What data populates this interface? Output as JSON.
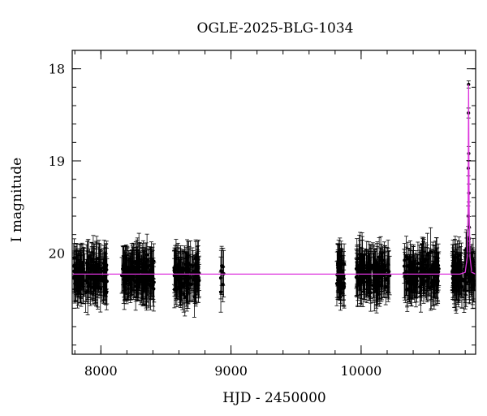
{
  "chart_data": {
    "type": "scatter",
    "title": "OGLE-2025-BLG-1034",
    "xlabel": "HJD - 2450000",
    "ylabel": "I magnitude",
    "xlim": [
      7780,
      10880
    ],
    "ylim": [
      21.1,
      17.8
    ],
    "y_inverted": true,
    "x_ticks": [
      8000,
      9000,
      10000
    ],
    "y_ticks": [
      18,
      19,
      20
    ],
    "grid": false,
    "colors": {
      "points": "#000000",
      "model": "#dd33dd"
    },
    "baseline_mag": 20.23,
    "model_curve": [
      {
        "x": 7780,
        "y": 20.23
      },
      {
        "x": 10760,
        "y": 20.23
      },
      {
        "x": 10800,
        "y": 20.21
      },
      {
        "x": 10815,
        "y": 20.05
      },
      {
        "x": 10822,
        "y": 19.5
      },
      {
        "x": 10826,
        "y": 18.17
      },
      {
        "x": 10830,
        "y": 19.5
      },
      {
        "x": 10837,
        "y": 20.05
      },
      {
        "x": 10850,
        "y": 20.21
      },
      {
        "x": 10880,
        "y": 20.23
      }
    ],
    "seasons": [
      {
        "x_start": 7790,
        "x_end": 8050,
        "n": 150
      },
      {
        "x_start": 8160,
        "x_end": 8410,
        "n": 150
      },
      {
        "x_start": 8560,
        "x_end": 8760,
        "n": 110
      },
      {
        "x_start": 8920,
        "x_end": 8945,
        "n": 8
      },
      {
        "x_start": 9810,
        "x_end": 9870,
        "n": 45
      },
      {
        "x_start": 9960,
        "x_end": 10220,
        "n": 140
      },
      {
        "x_start": 10330,
        "x_end": 10600,
        "n": 140
      },
      {
        "x_start": 10700,
        "x_end": 10880,
        "n": 110
      }
    ],
    "scatter_sigma": 0.22,
    "error_bar_size": 0.22,
    "peak_points": [
      {
        "x": 10826,
        "y": 18.17
      },
      {
        "x": 10825,
        "y": 18.48
      },
      {
        "x": 10827,
        "y": 18.92
      },
      {
        "x": 10824,
        "y": 19.08
      },
      {
        "x": 10828,
        "y": 19.35
      },
      {
        "x": 10823,
        "y": 19.6
      },
      {
        "x": 10829,
        "y": 19.72
      },
      {
        "x": 10830,
        "y": 19.85
      },
      {
        "x": 10822,
        "y": 19.95
      }
    ]
  }
}
